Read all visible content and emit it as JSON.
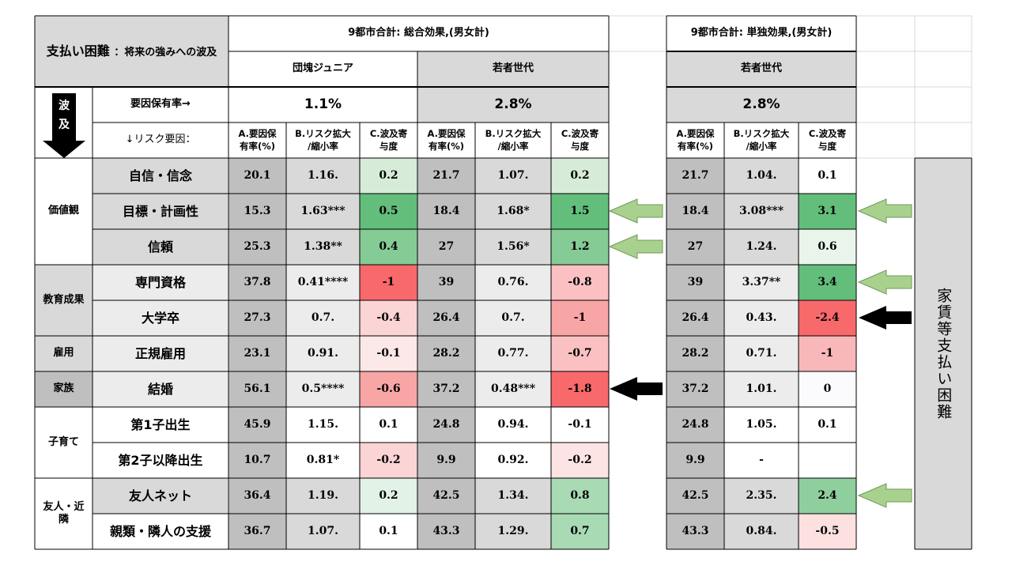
{
  "colors": {
    "gray_dark": "#bfbfbf",
    "gray_header": "#d9d9d9",
    "gray_light": "#ececec",
    "green_strong": "#63be7b",
    "green_mid": "#85cb95",
    "green_light": "#d6ecd9",
    "red_strong": "#f8696b",
    "red_mid": "#f8a5a6",
    "red_light": "#fbd4d5",
    "arrow_green": "#a9d18e"
  },
  "header": {
    "title_main": "支払い困難",
    "title_sub": "：将来の強みへの波及",
    "group1": "9都市合計: 総合効果,(男女計)",
    "group2": "9都市合計: 単独効果,(男女計)",
    "sub_a": "団塊ジュニア",
    "sub_b": "若者世代",
    "sub_c": "若者世代",
    "hazard_label": "波及",
    "hazard_char1": "波",
    "hazard_char2": "及",
    "rate_label": "要因保有率→",
    "risk_label": "↓リスク要因：",
    "rate_a": "1.1%",
    "rate_b": "2.8%",
    "rate_c": "2.8%",
    "col_a": "A.要因保有率(%)",
    "col_a1": "A.要因保",
    "col_a2": "有率(%)",
    "col_b1": "B.リスク拡大",
    "col_b2": "/縮小率",
    "col_c1": "C.波及寄",
    "col_c2": "与度"
  },
  "side_label": "家賃等支払い困難",
  "categories": [
    {
      "name": "価値観"
    },
    {
      "name": "教育成果"
    },
    {
      "name": "雇用"
    },
    {
      "name": "家族"
    },
    {
      "name": "子育て"
    },
    {
      "name": "友人・近隣"
    }
  ],
  "rows": [
    {
      "label": "自信・信念",
      "a1": "20.1",
      "b1": "1.16.",
      "c1": "0.2",
      "a2": "21.7",
      "b2": "1.07.",
      "c2": "0.2",
      "a3": "21.7",
      "b3": "1.04.",
      "c3": "0.1"
    },
    {
      "label": "目標・計画性",
      "a1": "15.3",
      "b1": "1.63***",
      "c1": "0.5",
      "a2": "18.4",
      "b2": "1.68*",
      "c2": "1.5",
      "a3": "18.4",
      "b3": "3.08***",
      "c3": "3.1"
    },
    {
      "label": "信頼",
      "a1": "25.3",
      "b1": "1.38**",
      "c1": "0.4",
      "a2": "27",
      "b2": "1.56*",
      "c2": "1.2",
      "a3": "27",
      "b3": "1.24.",
      "c3": "0.6"
    },
    {
      "label": "専門資格",
      "a1": "37.8",
      "b1": "0.41****",
      "c1": "-1",
      "a2": "39",
      "b2": "0.76.",
      "c2": "-0.8",
      "a3": "39",
      "b3": "3.37**",
      "c3": "3.4"
    },
    {
      "label": "大学卒",
      "a1": "27.3",
      "b1": "0.7.",
      "c1": "-0.4",
      "a2": "26.4",
      "b2": "0.7.",
      "c2": "-1",
      "a3": "26.4",
      "b3": "0.43.",
      "c3": "-2.4"
    },
    {
      "label": "正規雇用",
      "a1": "23.1",
      "b1": "0.91.",
      "c1": "-0.1",
      "a2": "28.2",
      "b2": "0.77.",
      "c2": "-0.7",
      "a3": "28.2",
      "b3": "0.71.",
      "c3": "-1"
    },
    {
      "label": "結婚",
      "a1": "56.1",
      "b1": "0.5****",
      "c1": "-0.6",
      "a2": "37.2",
      "b2": "0.48***",
      "c2": "-1.8",
      "a3": "37.2",
      "b3": "1.01.",
      "c3": "0"
    },
    {
      "label": "第1子出生",
      "a1": "45.9",
      "b1": "1.15.",
      "c1": "0.1",
      "a2": "24.8",
      "b2": "0.94.",
      "c2": "-0.1",
      "a3": "24.8",
      "b3": "1.05.",
      "c3": "0.1"
    },
    {
      "label": "第2子以降出生",
      "a1": "10.7",
      "b1": "0.81*",
      "c1": "-0.2",
      "a2": "9.9",
      "b2": "0.92.",
      "c2": "-0.2",
      "a3": "9.9",
      "b3": "-",
      "c3": ""
    },
    {
      "label": "友人ネット",
      "a1": "36.4",
      "b1": "1.19.",
      "c1": "0.2",
      "a2": "42.5",
      "b2": "1.34.",
      "c2": "0.8",
      "a3": "42.5",
      "b3": "2.35.",
      "c3": "2.4"
    },
    {
      "label": "親類・隣人の支援",
      "a1": "36.7",
      "b1": "1.07.",
      "c1": "0.1",
      "a2": "43.3",
      "b2": "1.29.",
      "c2": "0.7",
      "a3": "43.3",
      "b3": "0.84.",
      "c3": "-0.5"
    }
  ]
}
